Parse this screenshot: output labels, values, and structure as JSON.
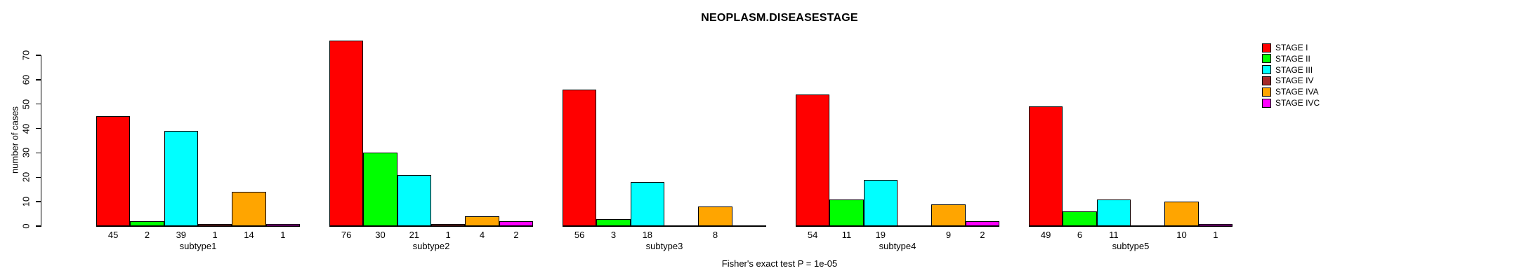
{
  "chart_data": {
    "type": "bar",
    "title": "NEOPLASM.DISEASESTAGE",
    "ylabel": "number of cases",
    "xlabel": "",
    "annotation": "Fisher's exact test P = 1e-05",
    "ylim": [
      0,
      70
    ],
    "yticks": [
      0,
      10,
      20,
      30,
      40,
      50,
      60,
      70
    ],
    "grid": false,
    "legend_position": "right",
    "value_labels_under_bars": true,
    "categories": [
      "subtype1",
      "subtype2",
      "subtype3",
      "subtype4",
      "subtype5"
    ],
    "series": [
      {
        "name": "STAGE I",
        "color": "#FF0000",
        "values": [
          45,
          76,
          56,
          54,
          49
        ]
      },
      {
        "name": "STAGE II",
        "color": "#00FF00",
        "values": [
          2,
          30,
          3,
          11,
          6
        ]
      },
      {
        "name": "STAGE III",
        "color": "#00FFFF",
        "values": [
          39,
          21,
          18,
          19,
          11
        ]
      },
      {
        "name": "STAGE IV",
        "color": "#A52A2A",
        "values": [
          1,
          1,
          null,
          null,
          null
        ]
      },
      {
        "name": "STAGE IVA",
        "color": "#FFA500",
        "values": [
          14,
          4,
          8,
          9,
          10
        ]
      },
      {
        "name": "STAGE IVC",
        "color": "#FF00FF",
        "values": [
          1,
          2,
          null,
          2,
          1
        ]
      }
    ]
  }
}
